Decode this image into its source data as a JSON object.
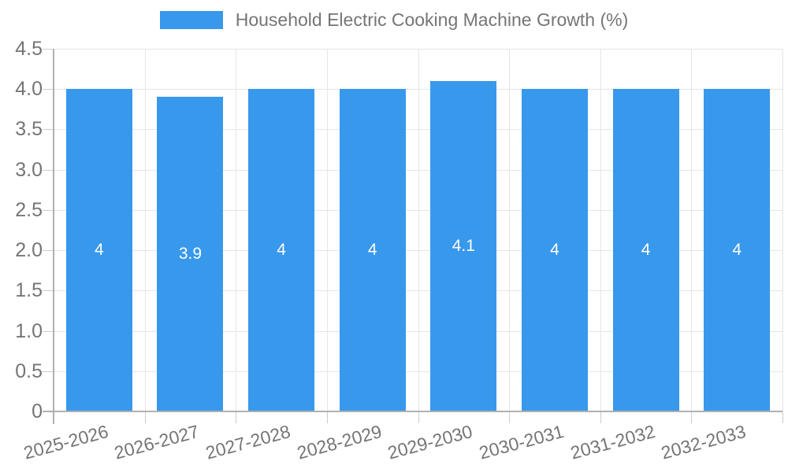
{
  "chart_data": {
    "type": "bar",
    "title": "Household Electric Cooking Machine Growth (%)",
    "legend_position": "top",
    "grid": true,
    "categories": [
      "2025-2026",
      "2026-2027",
      "2027-2028",
      "2028-2029",
      "2029-2030",
      "2030-2031",
      "2031-2032",
      "2032-2033"
    ],
    "values": [
      4,
      3.9,
      4,
      4,
      4.1,
      4,
      4,
      4
    ],
    "value_labels": [
      "4",
      "3.9",
      "4",
      "4",
      "4.1",
      "4",
      "4",
      "4"
    ],
    "xlabel": "",
    "ylabel": "",
    "ylim": [
      0,
      4.5
    ],
    "ytick_step": 0.5,
    "ytick_labels": [
      "0",
      "0.5",
      "1.0",
      "1.5",
      "2.0",
      "2.5",
      "3.0",
      "3.5",
      "4.0",
      "4.5"
    ],
    "colors": {
      "bar": "#3898ec",
      "value_label": "#ffffff",
      "grid": "#e6e6e6",
      "axis": "#b0b0b0",
      "tick": "#cccccc",
      "text": "#757575"
    }
  }
}
